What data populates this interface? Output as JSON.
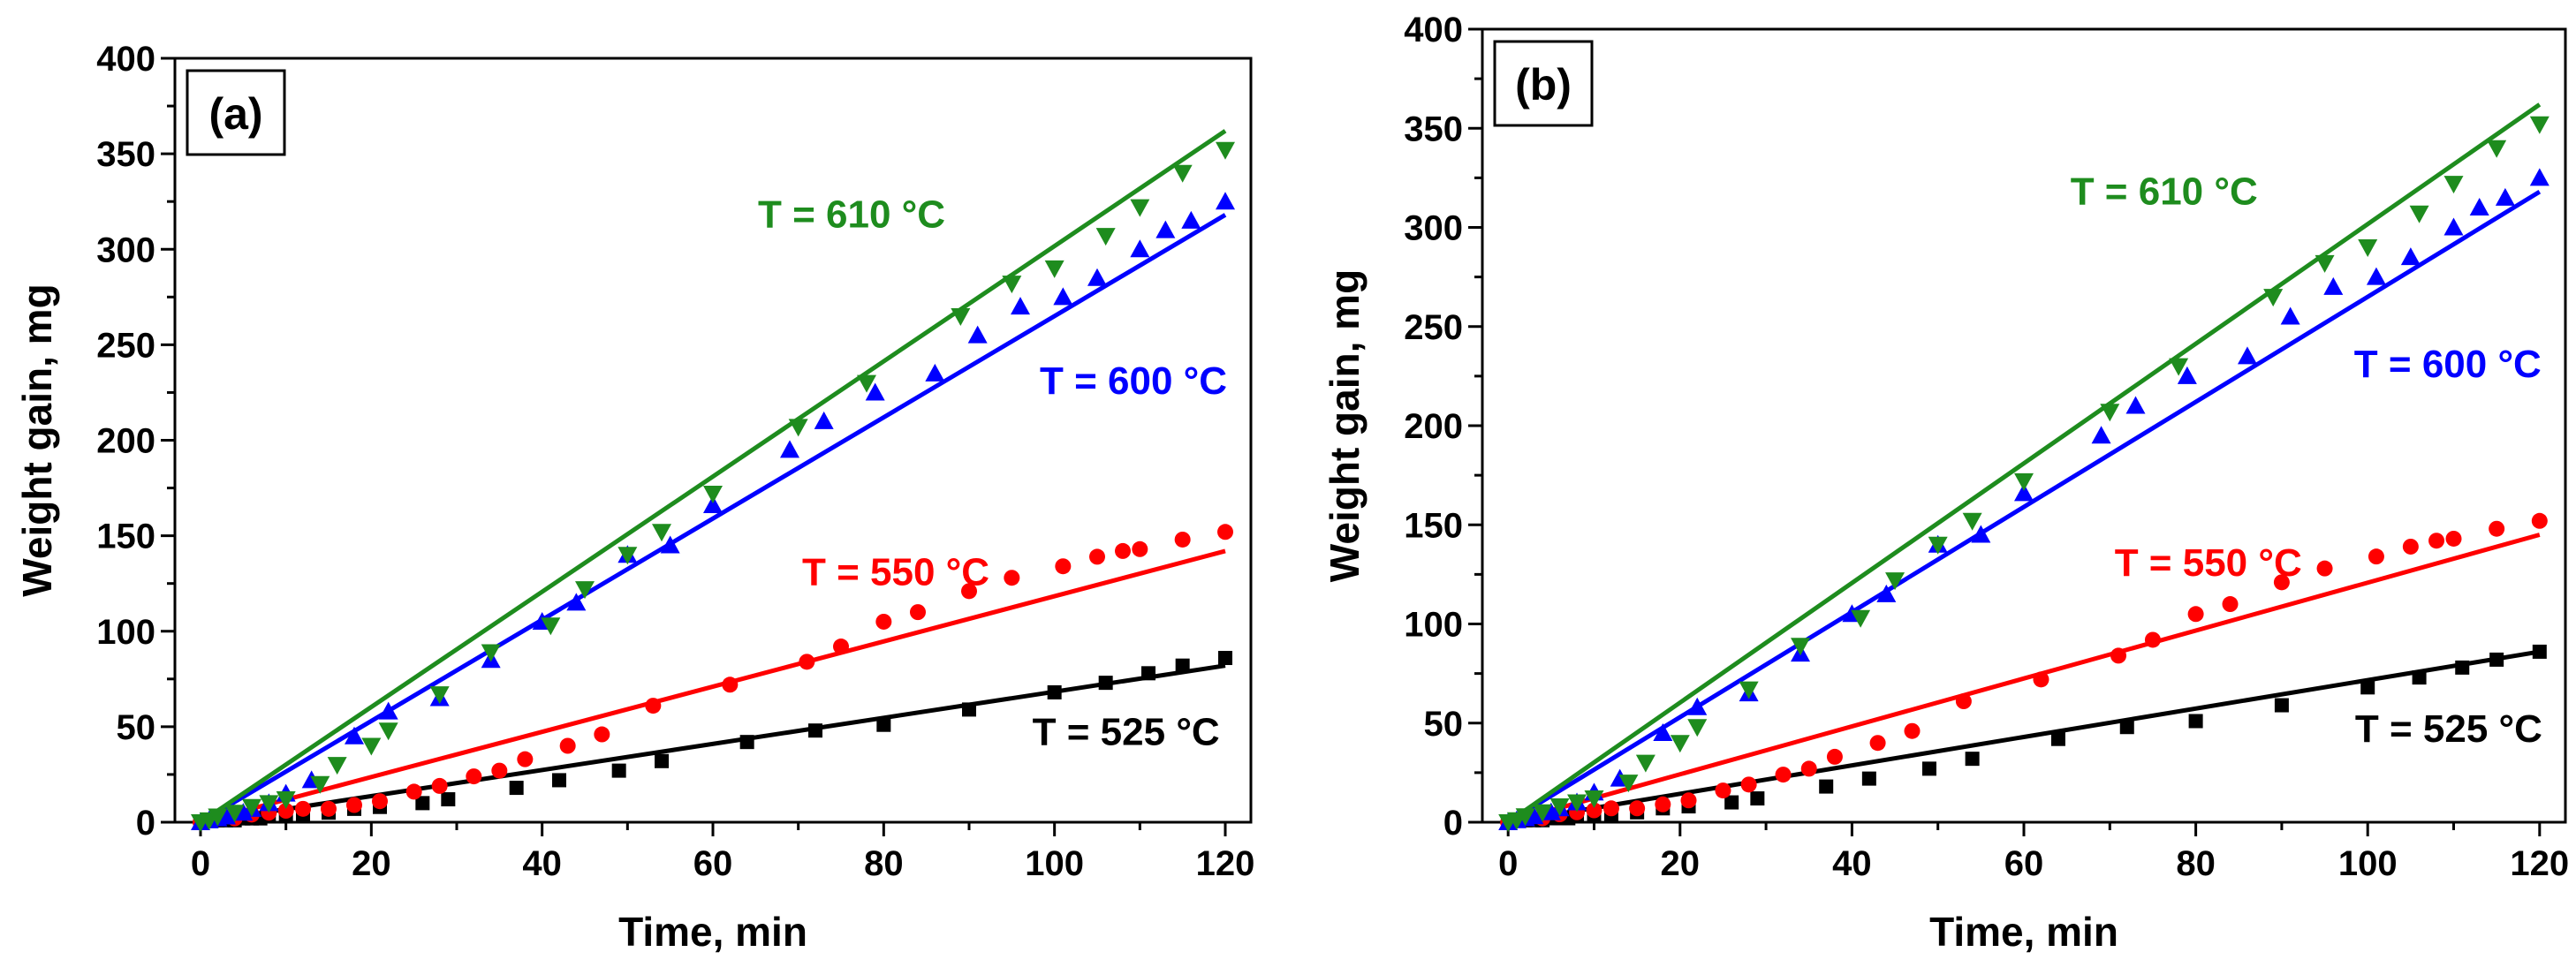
{
  "chart_data": [
    {
      "type": "scatter",
      "panel_label": "(a)",
      "xlabel": "Time, min",
      "ylabel": "Weight gain, mg",
      "xlim": [
        -3,
        123
      ],
      "ylim": [
        0,
        400
      ],
      "x_ticks": [
        0,
        20,
        40,
        60,
        80,
        100,
        120
      ],
      "y_ticks": [
        0,
        50,
        100,
        150,
        200,
        250,
        300,
        350,
        400
      ],
      "series": [
        {
          "name": "T = 525 °C",
          "color": "#000000",
          "marker": "square",
          "label_anchor": [
            115,
            45
          ],
          "fit": [
            [
              0,
              0
            ],
            [
              120,
              82
            ]
          ],
          "points": [
            [
              0,
              0
            ],
            [
              1,
              1
            ],
            [
              2,
              1
            ],
            [
              3,
              1
            ],
            [
              4,
              1
            ],
            [
              5,
              2
            ],
            [
              6,
              2
            ],
            [
              7,
              2
            ],
            [
              8,
              3
            ],
            [
              10,
              3
            ],
            [
              12,
              4
            ],
            [
              15,
              5
            ],
            [
              18,
              7
            ],
            [
              21,
              8
            ],
            [
              26,
              10
            ],
            [
              29,
              12
            ],
            [
              37,
              18
            ],
            [
              42,
              22
            ],
            [
              49,
              27
            ],
            [
              54,
              32
            ],
            [
              64,
              42
            ],
            [
              72,
              48
            ],
            [
              80,
              51
            ],
            [
              90,
              59
            ],
            [
              100,
              68
            ],
            [
              106,
              73
            ],
            [
              111,
              78
            ],
            [
              115,
              82
            ],
            [
              120,
              86
            ]
          ]
        },
        {
          "name": "T = 550 °C",
          "color": "#ff0000",
          "marker": "circle",
          "label_anchor": [
            87,
            127
          ],
          "fit": [
            [
              0,
              0
            ],
            [
              120,
              142
            ]
          ],
          "points": [
            [
              0,
              0
            ],
            [
              1,
              1
            ],
            [
              2,
              2
            ],
            [
              4,
              2
            ],
            [
              6,
              4
            ],
            [
              8,
              5
            ],
            [
              10,
              6
            ],
            [
              12,
              7
            ],
            [
              15,
              7
            ],
            [
              18,
              9
            ],
            [
              21,
              11
            ],
            [
              25,
              16
            ],
            [
              28,
              19
            ],
            [
              32,
              24
            ],
            [
              35,
              27
            ],
            [
              38,
              33
            ],
            [
              43,
              40
            ],
            [
              47,
              46
            ],
            [
              53,
              61
            ],
            [
              62,
              72
            ],
            [
              71,
              84
            ],
            [
              75,
              92
            ],
            [
              80,
              105
            ],
            [
              84,
              110
            ],
            [
              90,
              121
            ],
            [
              95,
              128
            ],
            [
              101,
              134
            ],
            [
              105,
              139
            ],
            [
              108,
              142
            ],
            [
              110,
              143
            ],
            [
              115,
              148
            ],
            [
              120,
              152
            ]
          ]
        },
        {
          "name": "T = 600 °C",
          "color": "#0000ff",
          "marker": "triangle-up",
          "label_anchor": [
            120,
            228
          ],
          "fit": [
            [
              0,
              0
            ],
            [
              120,
              318
            ]
          ],
          "points": [
            [
              0,
              0
            ],
            [
              1,
              1
            ],
            [
              2,
              2
            ],
            [
              3,
              3
            ],
            [
              5,
              5
            ],
            [
              6,
              7
            ],
            [
              8,
              10
            ],
            [
              10,
              15
            ],
            [
              13,
              22
            ],
            [
              18,
              45
            ],
            [
              22,
              58
            ],
            [
              28,
              65
            ],
            [
              34,
              85
            ],
            [
              40,
              105
            ],
            [
              44,
              115
            ],
            [
              50,
              140
            ],
            [
              55,
              145
            ],
            [
              60,
              166
            ],
            [
              69,
              195
            ],
            [
              73,
              210
            ],
            [
              79,
              225
            ],
            [
              86,
              235
            ],
            [
              91,
              255
            ],
            [
              96,
              270
            ],
            [
              101,
              275
            ],
            [
              105,
              285
            ],
            [
              110,
              300
            ],
            [
              113,
              310
            ],
            [
              116,
              315
            ],
            [
              120,
              325
            ]
          ]
        },
        {
          "name": "T = 610 °C",
          "color": "#1e8c1e",
          "marker": "triangle-down",
          "label_anchor": [
            87,
            316
          ],
          "fit": [
            [
              0,
              0
            ],
            [
              120,
              362
            ]
          ],
          "points": [
            [
              0,
              0
            ],
            [
              1,
              1
            ],
            [
              2,
              3
            ],
            [
              4,
              5
            ],
            [
              6,
              8
            ],
            [
              8,
              10
            ],
            [
              10,
              12
            ],
            [
              14,
              20
            ],
            [
              16,
              30
            ],
            [
              20,
              40
            ],
            [
              22,
              48
            ],
            [
              28,
              67
            ],
            [
              34,
              89
            ],
            [
              41,
              103
            ],
            [
              45,
              122
            ],
            [
              50,
              140
            ],
            [
              54,
              152
            ],
            [
              60,
              172
            ],
            [
              70,
              207
            ],
            [
              78,
              230
            ],
            [
              89,
              265
            ],
            [
              95,
              282
            ],
            [
              100,
              290
            ],
            [
              106,
              307
            ],
            [
              110,
              322
            ],
            [
              115,
              340
            ],
            [
              120,
              352
            ]
          ]
        }
      ]
    },
    {
      "type": "scatter",
      "panel_label": "(b)",
      "xlabel": "Time, min",
      "ylabel": "Weight gain, mg",
      "xlim": [
        -3,
        123
      ],
      "ylim": [
        0,
        400
      ],
      "x_ticks": [
        0,
        20,
        40,
        60,
        80,
        100,
        120
      ],
      "y_ticks": [
        0,
        50,
        100,
        150,
        200,
        250,
        300,
        350,
        400
      ],
      "series": [
        {
          "name": "T = 525 °C",
          "color": "#000000",
          "marker": "square",
          "label_anchor": [
            116,
            45
          ],
          "fit": [
            [
              0,
              0
            ],
            [
              120,
              86
            ]
          ],
          "points": [
            [
              0,
              0
            ],
            [
              1,
              1
            ],
            [
              2,
              1
            ],
            [
              3,
              1
            ],
            [
              4,
              1
            ],
            [
              5,
              2
            ],
            [
              6,
              2
            ],
            [
              7,
              2
            ],
            [
              8,
              3
            ],
            [
              10,
              3
            ],
            [
              12,
              4
            ],
            [
              15,
              5
            ],
            [
              18,
              7
            ],
            [
              21,
              8
            ],
            [
              26,
              10
            ],
            [
              29,
              12
            ],
            [
              37,
              18
            ],
            [
              42,
              22
            ],
            [
              49,
              27
            ],
            [
              54,
              32
            ],
            [
              64,
              42
            ],
            [
              72,
              48
            ],
            [
              80,
              51
            ],
            [
              90,
              59
            ],
            [
              100,
              68
            ],
            [
              106,
              73
            ],
            [
              111,
              78
            ],
            [
              115,
              82
            ],
            [
              120,
              86
            ]
          ]
        },
        {
          "name": "T = 550 °C",
          "color": "#ff0000",
          "marker": "circle",
          "label_anchor": [
            87,
            127
          ],
          "fit": [
            [
              0,
              0
            ],
            [
              120,
              145
            ]
          ],
          "points": [
            [
              0,
              0
            ],
            [
              1,
              1
            ],
            [
              2,
              2
            ],
            [
              4,
              2
            ],
            [
              6,
              4
            ],
            [
              8,
              5
            ],
            [
              10,
              6
            ],
            [
              12,
              7
            ],
            [
              15,
              7
            ],
            [
              18,
              9
            ],
            [
              21,
              11
            ],
            [
              25,
              16
            ],
            [
              28,
              19
            ],
            [
              32,
              24
            ],
            [
              35,
              27
            ],
            [
              38,
              33
            ],
            [
              43,
              40
            ],
            [
              47,
              46
            ],
            [
              53,
              61
            ],
            [
              62,
              72
            ],
            [
              71,
              84
            ],
            [
              75,
              92
            ],
            [
              80,
              105
            ],
            [
              84,
              110
            ],
            [
              90,
              121
            ],
            [
              95,
              128
            ],
            [
              101,
              134
            ],
            [
              105,
              139
            ],
            [
              108,
              142
            ],
            [
              110,
              143
            ],
            [
              115,
              148
            ],
            [
              120,
              152
            ]
          ]
        },
        {
          "name": "T = 600 °C",
          "color": "#0000ff",
          "marker": "triangle-up",
          "label_anchor": [
            120,
            228
          ],
          "fit": [
            [
              0,
              0
            ],
            [
              120,
              318
            ]
          ],
          "points": [
            [
              0,
              0
            ],
            [
              1,
              1
            ],
            [
              2,
              2
            ],
            [
              3,
              3
            ],
            [
              5,
              5
            ],
            [
              6,
              7
            ],
            [
              8,
              10
            ],
            [
              10,
              15
            ],
            [
              13,
              22
            ],
            [
              18,
              45
            ],
            [
              22,
              58
            ],
            [
              28,
              65
            ],
            [
              34,
              85
            ],
            [
              40,
              105
            ],
            [
              44,
              115
            ],
            [
              50,
              140
            ],
            [
              55,
              145
            ],
            [
              60,
              166
            ],
            [
              69,
              195
            ],
            [
              73,
              210
            ],
            [
              79,
              225
            ],
            [
              86,
              235
            ],
            [
              91,
              255
            ],
            [
              96,
              270
            ],
            [
              101,
              275
            ],
            [
              105,
              285
            ],
            [
              110,
              300
            ],
            [
              113,
              310
            ],
            [
              116,
              315
            ],
            [
              120,
              325
            ]
          ]
        },
        {
          "name": "T = 610 °C",
          "color": "#1e8c1e",
          "marker": "triangle-down",
          "label_anchor": [
            87,
            316
          ],
          "fit": [
            [
              0,
              0
            ],
            [
              120,
              362
            ]
          ],
          "points": [
            [
              0,
              0
            ],
            [
              1,
              1
            ],
            [
              2,
              3
            ],
            [
              4,
              5
            ],
            [
              6,
              8
            ],
            [
              8,
              10
            ],
            [
              10,
              12
            ],
            [
              14,
              20
            ],
            [
              16,
              30
            ],
            [
              20,
              40
            ],
            [
              22,
              48
            ],
            [
              28,
              67
            ],
            [
              34,
              89
            ],
            [
              41,
              103
            ],
            [
              45,
              122
            ],
            [
              50,
              140
            ],
            [
              54,
              152
            ],
            [
              60,
              172
            ],
            [
              70,
              207
            ],
            [
              78,
              230
            ],
            [
              89,
              265
            ],
            [
              95,
              282
            ],
            [
              100,
              290
            ],
            [
              106,
              307
            ],
            [
              110,
              322
            ],
            [
              115,
              340
            ],
            [
              120,
              352
            ]
          ]
        }
      ]
    }
  ]
}
